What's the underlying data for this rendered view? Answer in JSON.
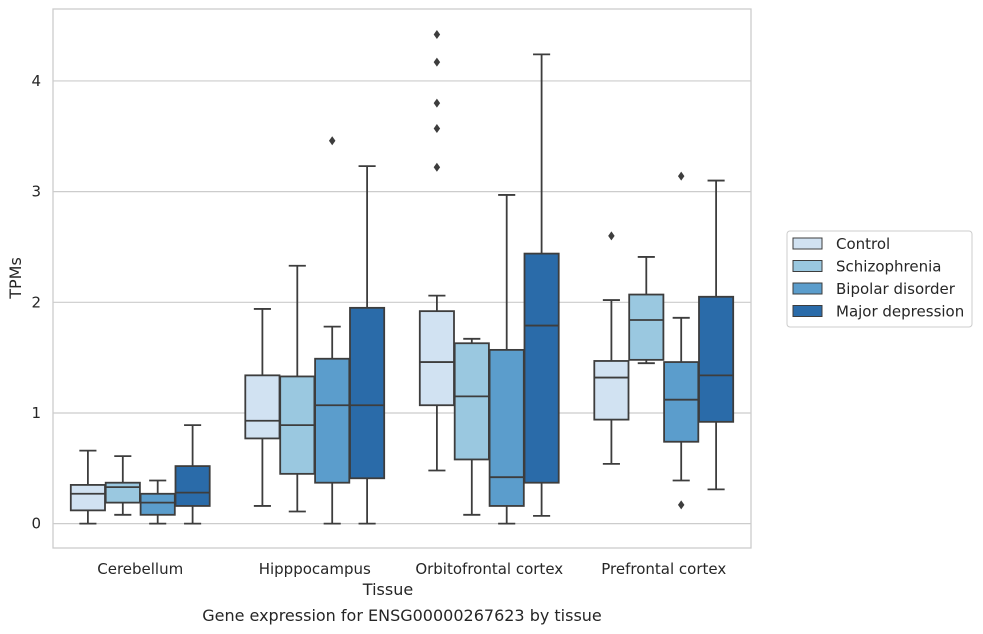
{
  "chart_data": {
    "type": "box",
    "caption": "Gene expression for ENSG00000267623 by tissue",
    "xlabel": "Tissue",
    "ylabel": "TPMs",
    "ylim": [
      -0.22,
      4.65
    ],
    "yticks": [
      0,
      1,
      2,
      3,
      4
    ],
    "grid": "horizontal",
    "legend_position": "right",
    "categories": [
      "Cerebellum",
      "Hipppocampus",
      "Orbitofrontal cortex",
      "Prefrontal cortex"
    ],
    "series": [
      {
        "name": "Control",
        "color": "#d1e2f2",
        "boxes": [
          {
            "whislo": 0.0,
            "q1": 0.12,
            "med": 0.27,
            "q3": 0.35,
            "whishi": 0.66,
            "fliers": []
          },
          {
            "whislo": 0.16,
            "q1": 0.77,
            "med": 0.93,
            "q3": 1.34,
            "whishi": 1.94,
            "fliers": []
          },
          {
            "whislo": 0.48,
            "q1": 1.07,
            "med": 1.46,
            "q3": 1.92,
            "whishi": 2.06,
            "fliers": [
              3.22,
              3.57,
              3.8,
              4.17,
              4.42
            ]
          },
          {
            "whislo": 0.54,
            "q1": 0.94,
            "med": 1.32,
            "q3": 1.47,
            "whishi": 2.02,
            "fliers": [
              2.6
            ]
          }
        ]
      },
      {
        "name": "Schizophrenia",
        "color": "#9ac8e0",
        "boxes": [
          {
            "whislo": 0.08,
            "q1": 0.19,
            "med": 0.33,
            "q3": 0.37,
            "whishi": 0.61,
            "fliers": []
          },
          {
            "whislo": 0.11,
            "q1": 0.45,
            "med": 0.89,
            "q3": 1.33,
            "whishi": 2.33,
            "fliers": []
          },
          {
            "whislo": 0.08,
            "q1": 0.58,
            "med": 1.15,
            "q3": 1.63,
            "whishi": 1.67,
            "fliers": []
          },
          {
            "whislo": 1.45,
            "q1": 1.48,
            "med": 1.84,
            "q3": 2.07,
            "whishi": 2.41,
            "fliers": []
          }
        ]
      },
      {
        "name": "Bipolar disorder",
        "color": "#5b9dcc",
        "boxes": [
          {
            "whislo": 0.0,
            "q1": 0.08,
            "med": 0.19,
            "q3": 0.27,
            "whishi": 0.39,
            "fliers": []
          },
          {
            "whislo": 0.0,
            "q1": 0.37,
            "med": 1.07,
            "q3": 1.49,
            "whishi": 1.78,
            "fliers": [
              3.46
            ]
          },
          {
            "whislo": 0.0,
            "q1": 0.16,
            "med": 0.42,
            "q3": 1.57,
            "whishi": 2.97,
            "fliers": []
          },
          {
            "whislo": 0.39,
            "q1": 0.74,
            "med": 1.12,
            "q3": 1.46,
            "whishi": 1.86,
            "fliers": [
              0.17,
              3.14
            ]
          }
        ]
      },
      {
        "name": "Major depression",
        "color": "#2a6ba9",
        "boxes": [
          {
            "whislo": 0.0,
            "q1": 0.16,
            "med": 0.28,
            "q3": 0.52,
            "whishi": 0.89,
            "fliers": []
          },
          {
            "whislo": 0.0,
            "q1": 0.41,
            "med": 1.07,
            "q3": 1.95,
            "whishi": 3.23,
            "fliers": []
          },
          {
            "whislo": 0.07,
            "q1": 0.37,
            "med": 1.79,
            "q3": 2.44,
            "whishi": 4.24,
            "fliers": []
          },
          {
            "whislo": 0.31,
            "q1": 0.92,
            "med": 1.34,
            "q3": 2.05,
            "whishi": 3.1,
            "fliers": []
          }
        ]
      }
    ]
  }
}
